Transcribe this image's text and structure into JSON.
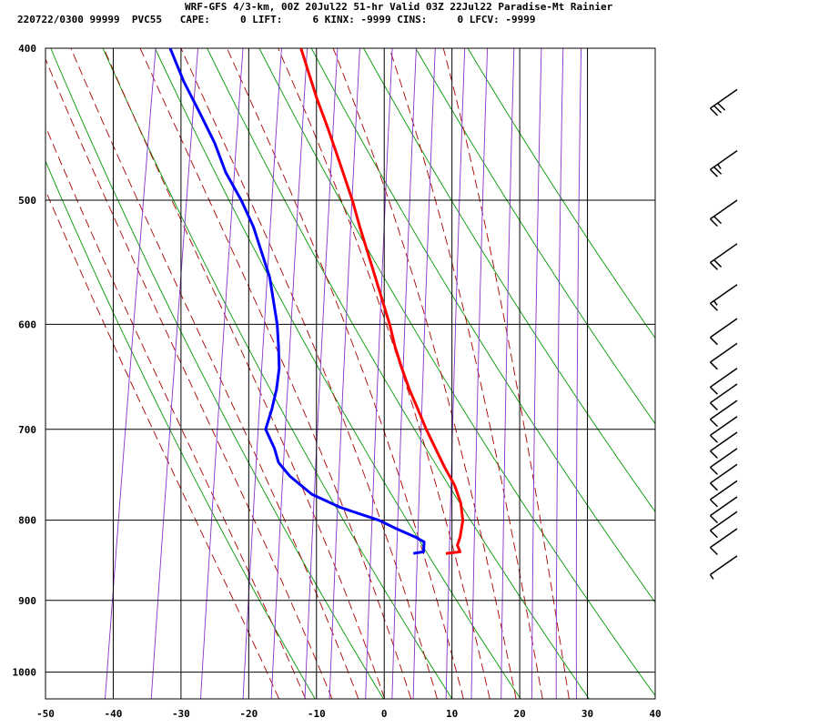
{
  "header": {
    "line1": "WRF-GFS 4/3-km, 00Z 20Jul22 51-hr Valid 03Z 22Jul22 Paradise-Mt Rainier",
    "line2": "220722/0300 99999  PVC55   CAPE:     0 LIFT:     6 KINX: -9999 CINS:     0 LFCV: -9999"
  },
  "colors": {
    "temperature": "#ff0000",
    "dewpoint": "#0000ff",
    "dry_adiabat": "#009900",
    "moist_adiabat": "#aa0000",
    "mixing_ratio": "#8833cc",
    "grid": "#000000",
    "barb": "#000000"
  },
  "chart_data": {
    "type": "skew-t",
    "title": "",
    "xlabel": "",
    "ylabel": "",
    "xlim": [
      -50,
      40
    ],
    "ylim": [
      1040,
      400
    ],
    "x_ticks": [
      -50,
      -40,
      -30,
      -20,
      -10,
      0,
      10,
      20,
      30,
      40
    ],
    "y_ticks": [
      400,
      500,
      600,
      700,
      800,
      900,
      1000
    ],
    "grid": true,
    "series": [
      {
        "role": "temperature",
        "points": [
          [
            840,
            9.1
          ],
          [
            838,
            11.2
          ],
          [
            830,
            10.8
          ],
          [
            820,
            11.2
          ],
          [
            800,
            11.6
          ],
          [
            780,
            11.3
          ],
          [
            760,
            10.4
          ],
          [
            740,
            8.9
          ],
          [
            700,
            6.2
          ],
          [
            680,
            5.0
          ],
          [
            660,
            3.7
          ],
          [
            640,
            2.6
          ],
          [
            620,
            1.6
          ],
          [
            600,
            0.8
          ],
          [
            560,
            -1.3
          ],
          [
            520,
            -3.6
          ],
          [
            500,
            -4.7
          ],
          [
            470,
            -6.8
          ],
          [
            450,
            -8.3
          ],
          [
            430,
            -10.0
          ],
          [
            400,
            -12.3
          ]
        ]
      },
      {
        "role": "dewpoint",
        "points": [
          [
            840,
            4.3
          ],
          [
            838,
            5.8
          ],
          [
            826,
            5.9
          ],
          [
            820,
            4.6
          ],
          [
            810,
            1.8
          ],
          [
            800,
            -0.8
          ],
          [
            785,
            -6.5
          ],
          [
            770,
            -10.7
          ],
          [
            750,
            -13.9
          ],
          [
            735,
            -15.6
          ],
          [
            720,
            -16.2
          ],
          [
            700,
            -17.5
          ],
          [
            680,
            -16.6
          ],
          [
            660,
            -15.9
          ],
          [
            640,
            -15.5
          ],
          [
            620,
            -15.6
          ],
          [
            600,
            -15.8
          ],
          [
            560,
            -16.9
          ],
          [
            520,
            -19.3
          ],
          [
            500,
            -21.1
          ],
          [
            480,
            -23.4
          ],
          [
            460,
            -25.0
          ],
          [
            440,
            -27.2
          ],
          [
            420,
            -29.6
          ],
          [
            400,
            -31.6
          ]
        ]
      }
    ],
    "wind_barbs": [
      {
        "p": 843,
        "knots": 5
      },
      {
        "p": 810,
        "knots": 10
      },
      {
        "p": 790,
        "knots": 10
      },
      {
        "p": 773,
        "knots": 10
      },
      {
        "p": 755,
        "knots": 10
      },
      {
        "p": 737,
        "knots": 10
      },
      {
        "p": 720,
        "knots": 10
      },
      {
        "p": 703,
        "knots": 10
      },
      {
        "p": 687,
        "knots": 10
      },
      {
        "p": 671,
        "knots": 10
      },
      {
        "p": 655,
        "knots": 10
      },
      {
        "p": 640,
        "knots": 10
      },
      {
        "p": 617,
        "knots": 10
      },
      {
        "p": 595,
        "knots": 10
      },
      {
        "p": 566,
        "knots": 15
      },
      {
        "p": 533,
        "knots": 20
      },
      {
        "p": 500,
        "knots": 20
      },
      {
        "p": 465,
        "knots": 25
      },
      {
        "p": 425,
        "knots": 30
      }
    ],
    "reference_lines": {
      "dry_adiabats_theta_K": [
        260,
        270,
        280,
        290,
        300,
        310,
        320,
        330,
        340,
        350
      ],
      "moist_adiabats_thetaw_C": [
        -18,
        -14,
        -10,
        -6,
        -2,
        2,
        6,
        10,
        14,
        18,
        22,
        26
      ],
      "mixing_ratio_gkg": [
        0.1,
        0.2,
        0.4,
        0.7,
        1,
        1.5,
        2,
        3,
        4,
        5,
        7,
        9,
        12,
        16,
        20,
        24
      ]
    }
  }
}
